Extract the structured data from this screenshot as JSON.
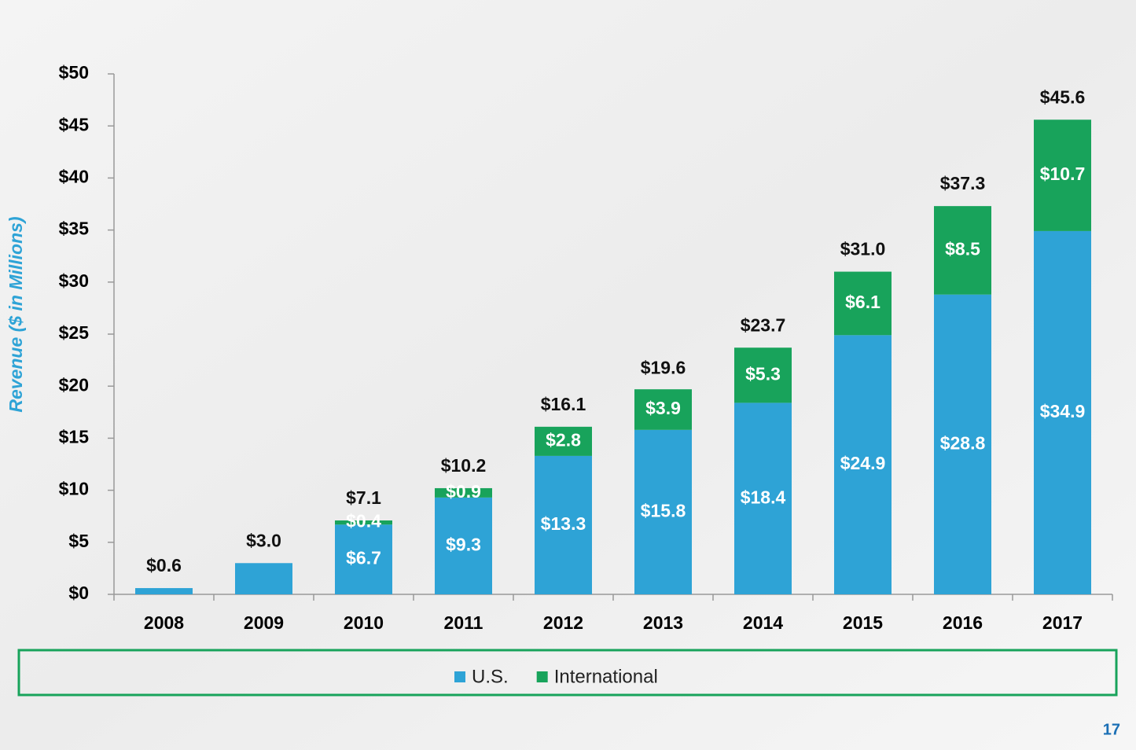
{
  "chart_data": {
    "type": "stacked-bar",
    "ylabel": "Revenue  ($ in Millions)",
    "categories": [
      "2008",
      "2009",
      "2010",
      "2011",
      "2012",
      "2013",
      "2014",
      "2015",
      "2016",
      "2017"
    ],
    "series": [
      {
        "name": "U.S.",
        "color": "#2ea3d6",
        "values": [
          0.6,
          3.0,
          6.7,
          9.3,
          13.3,
          15.8,
          18.4,
          24.9,
          28.8,
          34.9
        ],
        "value_labels": [
          null,
          null,
          "$6.7",
          "$9.3",
          "$13.3",
          "$15.8",
          "$18.4",
          "$24.9",
          "$28.8",
          "$34.9"
        ]
      },
      {
        "name": "International",
        "color": "#18a35b",
        "values": [
          null,
          null,
          0.4,
          0.9,
          2.8,
          3.9,
          5.3,
          6.1,
          8.5,
          10.7
        ],
        "value_labels": [
          null,
          null,
          "$0.4",
          "$0.9",
          "$2.8",
          "$3.9",
          "$5.3",
          "$6.1",
          "$8.5",
          "$10.7"
        ]
      }
    ],
    "totals": [
      0.6,
      3.0,
      7.1,
      10.2,
      16.1,
      19.6,
      23.7,
      31.0,
      37.3,
      45.6
    ],
    "total_labels": [
      "$0.6",
      "$3.0",
      "$7.1",
      "$10.2",
      "$16.1",
      "$19.6",
      "$23.7",
      "$31.0",
      "$37.3",
      "$45.6"
    ],
    "ylim": [
      0,
      50
    ],
    "yticks": [
      {
        "value": 0,
        "label": "$0"
      },
      {
        "value": 5,
        "label": "$5"
      },
      {
        "value": 10,
        "label": "$10"
      },
      {
        "value": 15,
        "label": "$15"
      },
      {
        "value": 20,
        "label": "$20"
      },
      {
        "value": 25,
        "label": "$25"
      },
      {
        "value": 30,
        "label": "$30"
      },
      {
        "value": 35,
        "label": "$35"
      },
      {
        "value": 40,
        "label": "$40"
      },
      {
        "value": 45,
        "label": "$45"
      },
      {
        "value": 50,
        "label": "$50"
      }
    ],
    "grid": false,
    "legend": "bottom"
  },
  "page_number": "17"
}
